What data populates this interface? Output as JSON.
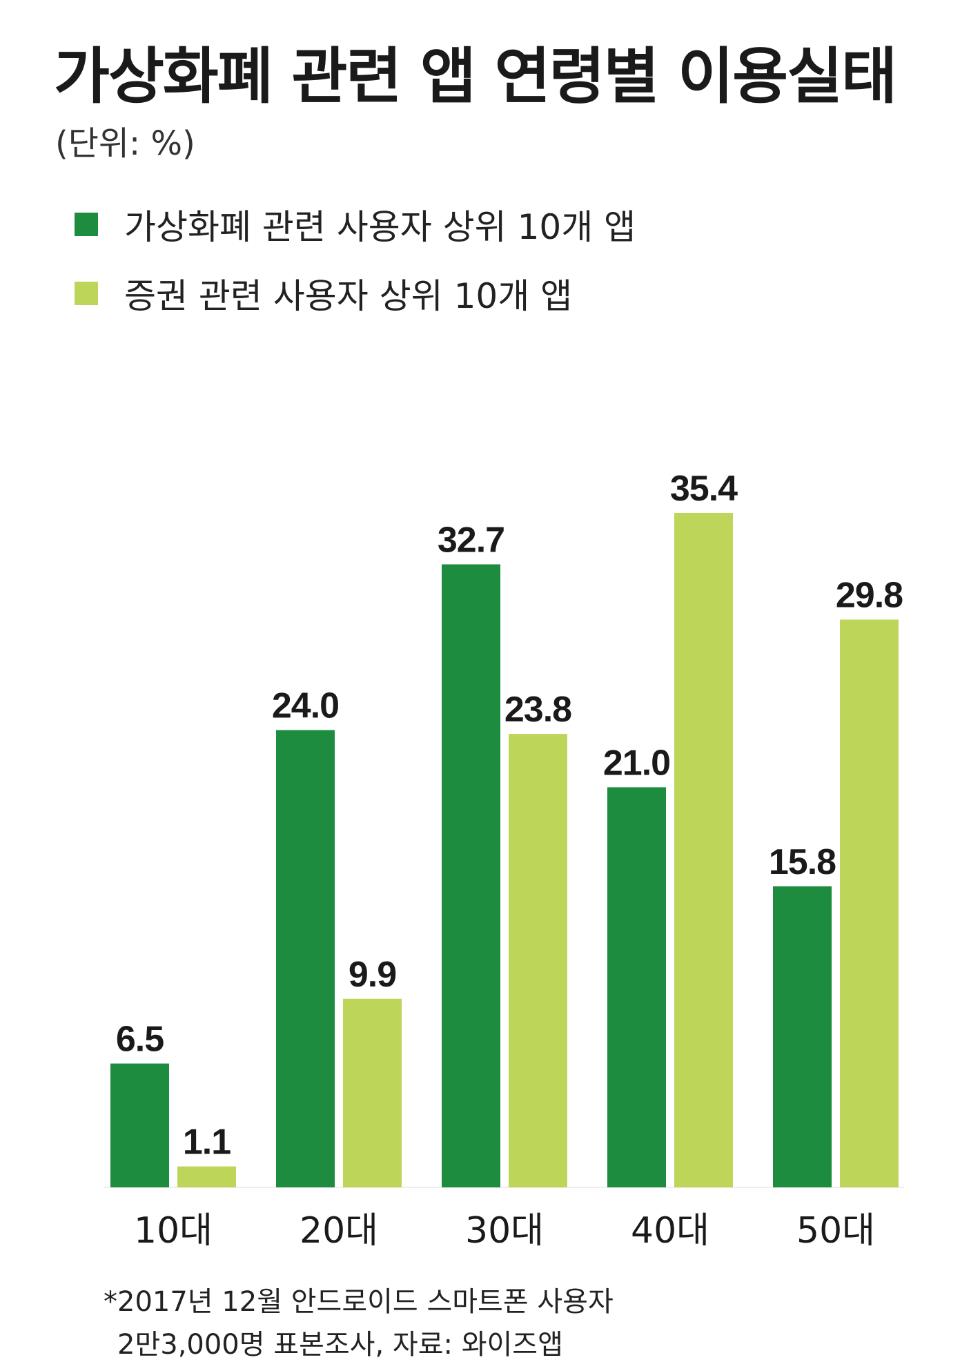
{
  "chart_data": {
    "type": "bar",
    "title": "가상화폐 관련 앱 연령별 이용실태",
    "unit": "(단위: %)",
    "categories": [
      "10대",
      "20대",
      "30대",
      "40대",
      "50대"
    ],
    "series": [
      {
        "name": "가상화폐 관련 사용자 상위 10개 앱",
        "color": "#1e8c3e",
        "values": [
          6.5,
          24.0,
          32.7,
          21.0,
          15.8
        ]
      },
      {
        "name": "증권 관련 사용자 상위 10개 앱",
        "color": "#bdd65a",
        "values": [
          1.1,
          9.9,
          23.8,
          35.4,
          29.8
        ]
      }
    ],
    "value_labels": [
      [
        "6.5",
        "24.0",
        "32.7",
        "21.0",
        "15.8"
      ],
      [
        "1.1",
        "9.9",
        "23.8",
        "35.4",
        "29.8"
      ]
    ],
    "ylim": [
      0,
      40
    ],
    "grid": false,
    "legend": "top-left",
    "footnote": [
      "*2017년 12월 안드로이드 스마트폰 사용자",
      "2만3,000명 표본조사, 자료: 와이즈앱"
    ]
  }
}
